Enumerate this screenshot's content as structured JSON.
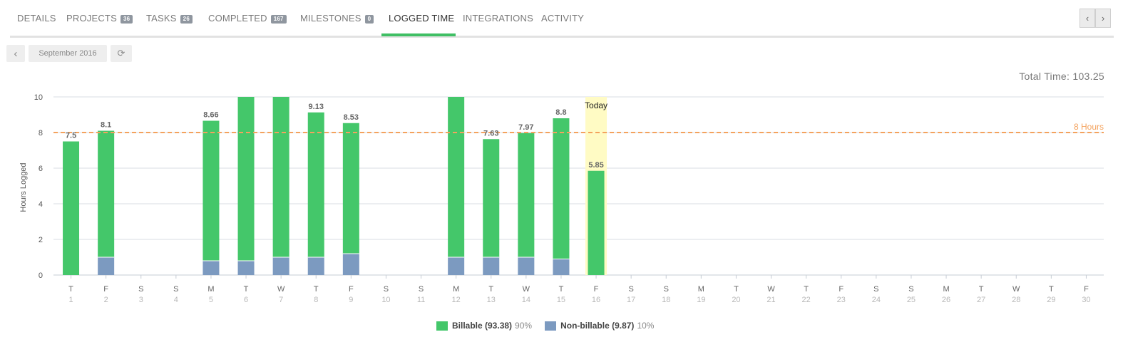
{
  "tabs": [
    {
      "label": "DETAILS",
      "badge": null,
      "active": false
    },
    {
      "label": "PROJECTS",
      "badge": "36",
      "active": false
    },
    {
      "label": "TASKS",
      "badge": "26",
      "active": false
    },
    {
      "label": "COMPLETED",
      "badge": "167",
      "active": false
    },
    {
      "label": "MILESTONES",
      "badge": "0",
      "active": false
    },
    {
      "label": "LOGGED TIME",
      "badge": null,
      "active": true
    },
    {
      "label": "INTEGRATIONS",
      "badge": null,
      "active": false
    },
    {
      "label": "ACTIVITY",
      "badge": null,
      "active": false
    }
  ],
  "pager": {
    "prev_icon": "chevron-left-icon",
    "next_icon": "chevron-right-icon",
    "prev": "‹",
    "next": "›"
  },
  "toolbar": {
    "prev_icon": "chevron-left-icon",
    "prev": "‹",
    "month": "September 2016",
    "refresh_icon": "refresh-icon",
    "refresh": "⟳"
  },
  "total_time": "Total Time: 103.25",
  "legend": [
    {
      "name": "Billable (93.38)",
      "pct": "90%",
      "color": "#44c76a"
    },
    {
      "name": "Non-billable (9.87)",
      "pct": "10%",
      "color": "#7c9ac0"
    }
  ],
  "colors": {
    "billable": "#44c76a",
    "nonbillable": "#7c9ac0",
    "target": "#f4a25d",
    "today": "#fffbc4",
    "grid": "#d8dde3",
    "active_tab": "#3fbf64"
  },
  "chart_data": {
    "type": "bar",
    "stacked": true,
    "ylabel": "Hours Logged",
    "ylim": [
      0,
      10
    ],
    "yticks": [
      0,
      2,
      4,
      6,
      8,
      10
    ],
    "grid": true,
    "target_line": {
      "value": 8,
      "label": "8 Hours"
    },
    "today": {
      "day": 16,
      "label": "Today"
    },
    "days": [
      {
        "dow": "T",
        "day": "1",
        "total": 7.5,
        "nonbillable": 0,
        "label": "7.5"
      },
      {
        "dow": "F",
        "day": "2",
        "total": 8.1,
        "nonbillable": 1.0,
        "label": "8.1"
      },
      {
        "dow": "S",
        "day": "3",
        "total": 0,
        "nonbillable": 0,
        "label": ""
      },
      {
        "dow": "S",
        "day": "4",
        "total": 0,
        "nonbillable": 0,
        "label": ""
      },
      {
        "dow": "M",
        "day": "5",
        "total": 8.66,
        "nonbillable": 0.8,
        "label": "8.66"
      },
      {
        "dow": "T",
        "day": "6",
        "total": 10,
        "nonbillable": 0.8,
        "label": ""
      },
      {
        "dow": "W",
        "day": "7",
        "total": 10,
        "nonbillable": 1.0,
        "label": ""
      },
      {
        "dow": "T",
        "day": "8",
        "total": 9.13,
        "nonbillable": 1.0,
        "label": "9.13"
      },
      {
        "dow": "F",
        "day": "9",
        "total": 8.53,
        "nonbillable": 1.2,
        "label": "8.53"
      },
      {
        "dow": "S",
        "day": "10",
        "total": 0,
        "nonbillable": 0,
        "label": ""
      },
      {
        "dow": "S",
        "day": "11",
        "total": 0,
        "nonbillable": 0,
        "label": ""
      },
      {
        "dow": "M",
        "day": "12",
        "total": 10,
        "nonbillable": 1.0,
        "label": ""
      },
      {
        "dow": "T",
        "day": "13",
        "total": 7.63,
        "nonbillable": 1.0,
        "label": "7.63"
      },
      {
        "dow": "W",
        "day": "14",
        "total": 7.97,
        "nonbillable": 1.0,
        "label": "7.97"
      },
      {
        "dow": "T",
        "day": "15",
        "total": 8.8,
        "nonbillable": 0.9,
        "label": "8.8"
      },
      {
        "dow": "F",
        "day": "16",
        "total": 5.85,
        "nonbillable": 0,
        "label": "5.85"
      },
      {
        "dow": "S",
        "day": "17",
        "total": 0,
        "nonbillable": 0,
        "label": ""
      },
      {
        "dow": "S",
        "day": "18",
        "total": 0,
        "nonbillable": 0,
        "label": ""
      },
      {
        "dow": "M",
        "day": "19",
        "total": 0,
        "nonbillable": 0,
        "label": ""
      },
      {
        "dow": "T",
        "day": "20",
        "total": 0,
        "nonbillable": 0,
        "label": ""
      },
      {
        "dow": "W",
        "day": "21",
        "total": 0,
        "nonbillable": 0,
        "label": ""
      },
      {
        "dow": "T",
        "day": "22",
        "total": 0,
        "nonbillable": 0,
        "label": ""
      },
      {
        "dow": "F",
        "day": "23",
        "total": 0,
        "nonbillable": 0,
        "label": ""
      },
      {
        "dow": "S",
        "day": "24",
        "total": 0,
        "nonbillable": 0,
        "label": ""
      },
      {
        "dow": "S",
        "day": "25",
        "total": 0,
        "nonbillable": 0,
        "label": ""
      },
      {
        "dow": "M",
        "day": "26",
        "total": 0,
        "nonbillable": 0,
        "label": ""
      },
      {
        "dow": "T",
        "day": "27",
        "total": 0,
        "nonbillable": 0,
        "label": ""
      },
      {
        "dow": "W",
        "day": "28",
        "total": 0,
        "nonbillable": 0,
        "label": ""
      },
      {
        "dow": "T",
        "day": "29",
        "total": 0,
        "nonbillable": 0,
        "label": ""
      },
      {
        "dow": "F",
        "day": "30",
        "total": 0,
        "nonbillable": 0,
        "label": ""
      }
    ]
  }
}
